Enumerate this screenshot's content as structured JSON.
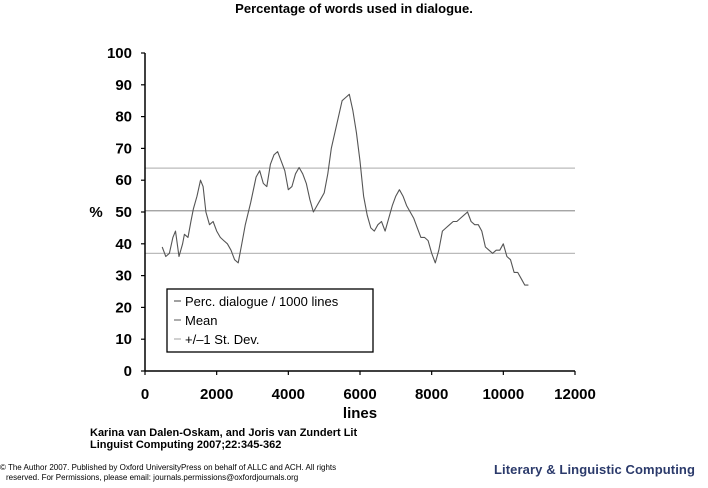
{
  "title": "Percentage of words used in dialogue.",
  "citation": {
    "line1": "Karina van Dalen-Oskam, and Joris van Zundert Lit",
    "line2": "Linguist Computing 2007;22:345-362"
  },
  "copyright": {
    "line1": "© The Author 2007. Published by Oxford UniversityPress on behalf of ALLC and ACH. All rights",
    "line2": "reserved. For Permissions, please email: journals.permissions@oxfordjournals.org"
  },
  "journal_logo": "Literary & Linguistic Computing",
  "chart_data": {
    "type": "line",
    "title": "",
    "xlabel": "lines",
    "ylabel": "%",
    "xlim": [
      0,
      12000
    ],
    "ylim": [
      0,
      100
    ],
    "xticks": [
      0,
      2000,
      4000,
      6000,
      8000,
      10000,
      12000
    ],
    "yticks": [
      0,
      10,
      20,
      30,
      40,
      50,
      60,
      70,
      80,
      90,
      100
    ],
    "grid": false,
    "plot_background": "#ffffff",
    "legend_position": "bottom-left",
    "reference_lines": [
      {
        "name": "Mean",
        "y": 50.4,
        "color": "#999999"
      },
      {
        "name": "+/–1 St. Dev.",
        "y": 63.8,
        "color": "#bbbbbb"
      },
      {
        "name": "+/–1 St. Dev.",
        "y": 37.0,
        "color": "#bbbbbb"
      }
    ],
    "legend": [
      {
        "label": "Perc. dialogue / 1000 lines",
        "color": "#777777"
      },
      {
        "label": "Mean",
        "color": "#888888"
      },
      {
        "label": "+/–1 St. Dev.",
        "color": "#bbbbbb"
      }
    ],
    "series": [
      {
        "name": "Perc. dialogue / 1000 lines",
        "color": "#555555",
        "x": [
          480,
          580,
          680,
          780,
          850,
          950,
          1050,
          1100,
          1200,
          1280,
          1350,
          1450,
          1550,
          1620,
          1700,
          1800,
          1900,
          2000,
          2100,
          2200,
          2300,
          2400,
          2500,
          2600,
          2700,
          2800,
          2950,
          3100,
          3200,
          3300,
          3400,
          3500,
          3600,
          3700,
          3800,
          3900,
          4000,
          4100,
          4200,
          4300,
          4400,
          4500,
          4600,
          4700,
          4800,
          4900,
          5000,
          5100,
          5200,
          5300,
          5400,
          5500,
          5600,
          5700,
          5800,
          5900,
          6000,
          6100,
          6200,
          6300,
          6400,
          6500,
          6600,
          6700,
          6800,
          6900,
          7000,
          7100,
          7200,
          7300,
          7400,
          7500,
          7600,
          7700,
          7800,
          7900,
          8000,
          8100,
          8200,
          8300,
          8400,
          8500,
          8600,
          8700,
          8800,
          8900,
          9000,
          9100,
          9200,
          9300,
          9400,
          9500,
          9600,
          9700,
          9800,
          9900,
          10000,
          10100,
          10200,
          10300,
          10400,
          10500,
          10600,
          10700
        ],
        "y": [
          39,
          36,
          37,
          42,
          44,
          36,
          40,
          43,
          42,
          47,
          51,
          55,
          60,
          58,
          50,
          46,
          47,
          44,
          42,
          41,
          40,
          38,
          35,
          34,
          40,
          46,
          53,
          61,
          63,
          59,
          58,
          65,
          68,
          69,
          66,
          63,
          57,
          58,
          62,
          64,
          62,
          59,
          54,
          50,
          52,
          54,
          56,
          62,
          70,
          75,
          80,
          85,
          86,
          87,
          82,
          75,
          66,
          55,
          49,
          45,
          44,
          46,
          47,
          44,
          48,
          52,
          55,
          57,
          55,
          52,
          50,
          48,
          45,
          42,
          42,
          41,
          37,
          34,
          38,
          44,
          45,
          46,
          47,
          47,
          48,
          49,
          50,
          47,
          46,
          46,
          44,
          39,
          38,
          37,
          38,
          38,
          40,
          36,
          35,
          31,
          31,
          29,
          27,
          27
        ]
      }
    ]
  }
}
